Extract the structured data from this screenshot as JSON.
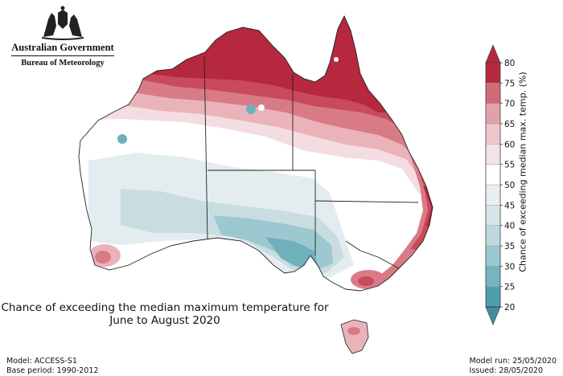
{
  "logo": {
    "icon": "coat-of-arms-icon",
    "org_name": "Australian Government",
    "org_sub": "Bureau of Meteorology"
  },
  "title": {
    "line1": "Chance of exceeding the median maximum temperature for",
    "line2": "June to August 2020"
  },
  "legend": {
    "title": "Chance of exceeding median max. temp. (%)",
    "ticks": [
      "20",
      "25",
      "30",
      "35",
      "40",
      "45",
      "50",
      "55",
      "60",
      "65",
      "70",
      "75",
      "80"
    ],
    "colors": [
      "#4e9fae",
      "#74b5c0",
      "#9bc9d1",
      "#bcd9de",
      "#d6e6e9",
      "#eaf0f1",
      "#ffffff",
      "#f4e4e6",
      "#eec7cc",
      "#e2a1aa",
      "#cf6b78",
      "#b5283d"
    ],
    "min_arrow_color": "#3f8f9e",
    "max_arrow_color": "#b5283d"
  },
  "footer": {
    "model": "Model: ACCESS-S1",
    "base_period": "Base period: 1990-2012",
    "model_run": "Model run: 25/05/2020",
    "issued": "Issued: 28/05/2020"
  },
  "map": {
    "region": "Australia",
    "colors": {
      "deep_red": "#b5283d",
      "red": "#c94a5c",
      "mid_red": "#d97b87",
      "light_red": "#eab3ba",
      "pale_red": "#f4dde0",
      "white": "#ffffff",
      "pale_blue": "#e3edef",
      "light_blue": "#c9dde1",
      "mid_blue": "#9cc8d0",
      "blue": "#6fb0bc",
      "border": "#222222"
    }
  }
}
